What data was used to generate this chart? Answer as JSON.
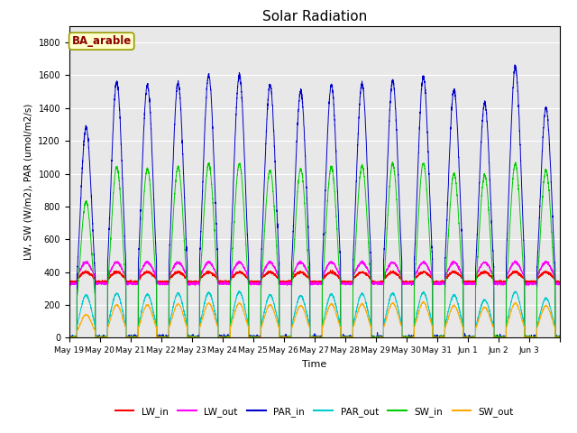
{
  "title": "Solar Radiation",
  "xlabel": "Time",
  "ylabel": "LW, SW (W/m2), PAR (umol/m2/s)",
  "annotation": "BA_arable",
  "ylim": [
    0,
    1900
  ],
  "yticks": [
    0,
    200,
    400,
    600,
    800,
    1000,
    1200,
    1400,
    1600,
    1800
  ],
  "days": 16,
  "points_per_day": 288,
  "series_colors": {
    "LW_in": "#ff0000",
    "LW_out": "#ff00ff",
    "PAR_in": "#0000cc",
    "PAR_out": "#00cccc",
    "SW_in": "#00cc00",
    "SW_out": "#ffaa00"
  },
  "background_color": "#e8e8e8",
  "lw_in_night": 340,
  "lw_in_day_bump": 60,
  "lw_out_night": 330,
  "lw_out_day_bump": 130,
  "par_in_peaks": [
    1280,
    1560,
    1540,
    1550,
    1600,
    1600,
    1540,
    1500,
    1540,
    1550,
    1570,
    1590,
    1510,
    1430,
    1650,
    1400
  ],
  "par_out_peaks": [
    260,
    270,
    265,
    270,
    275,
    280,
    260,
    255,
    265,
    268,
    270,
    275,
    260,
    230,
    280,
    240
  ],
  "sw_in_peaks": [
    830,
    1040,
    1030,
    1040,
    1060,
    1060,
    1020,
    1030,
    1040,
    1050,
    1060,
    1065,
    1000,
    990,
    1060,
    1020
  ],
  "sw_out_peaks": [
    140,
    200,
    200,
    205,
    210,
    210,
    200,
    195,
    205,
    205,
    210,
    215,
    195,
    185,
    210,
    195
  ],
  "tick_labels": [
    "May 19",
    "May 20",
    "May 21",
    "May 22",
    "May 23",
    "May 24",
    "May 25",
    "May 26",
    "May 27",
    "May 28",
    "May 29",
    "May 30",
    "May 31",
    "Jun 1",
    "Jun 2",
    "Jun 3",
    ""
  ]
}
